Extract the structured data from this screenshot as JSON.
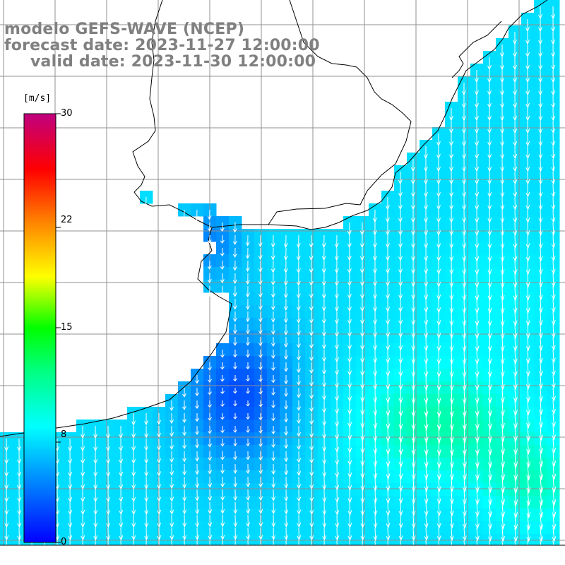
{
  "title": {
    "model": "modelo GEFS-WAVE (NCEP)",
    "forecast": "forecast date: 2023-11-27 12:00:00",
    "valid": "valid date: 2023-11-30 12:00:00"
  },
  "colorbar": {
    "unit": "[m/s]",
    "ticks": [
      "30",
      "22",
      "15",
      "8",
      "0"
    ],
    "tick_values": [
      30,
      22,
      15,
      8,
      0
    ],
    "range": [
      0,
      30
    ],
    "colors": [
      "#0000ff",
      "#0080ff",
      "#00ffff",
      "#00ff80",
      "#00ff00",
      "#80ff00",
      "#ffff00",
      "#ff8000",
      "#ff0000",
      "#e00060",
      "#c0007f"
    ]
  },
  "colors": {
    "land": "#ffffff",
    "coast": "#000000",
    "grid": "#909090",
    "arrow": "#ffffff",
    "title": "#808080"
  }
}
